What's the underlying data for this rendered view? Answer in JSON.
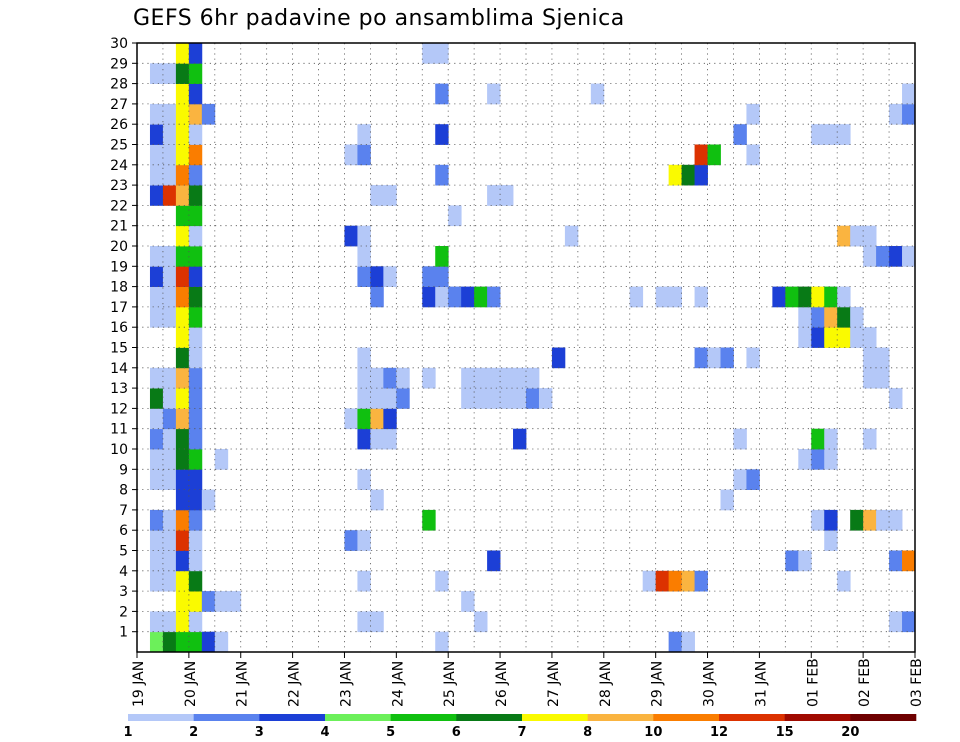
{
  "chart_data": {
    "type": "heatmap",
    "title": "GEFS 6hr padavine po ansamblima Sjenica",
    "x_tick_labels": [
      "19 JAN",
      "20 JAN",
      "21 JAN",
      "22 JAN",
      "23 JAN",
      "24 JAN",
      "25 JAN",
      "26 JAN",
      "27 JAN",
      "28 JAN",
      "29 JAN",
      "30 JAN",
      "31 JAN",
      "01 FEB",
      "02 FEB",
      "03 FEB"
    ],
    "y_tick_labels": [
      "1",
      "2",
      "3",
      "4",
      "5",
      "6",
      "7",
      "8",
      "9",
      "10",
      "11",
      "12",
      "13",
      "14",
      "15",
      "16",
      "17",
      "18",
      "19",
      "20",
      "21",
      "22",
      "23",
      "24",
      "25",
      "26",
      "27",
      "28",
      "29",
      "30"
    ],
    "y_range": [
      0,
      30
    ],
    "x_range_steps": [
      0,
      60
    ],
    "grid": true,
    "color_scale": {
      "thresholds": [
        "1",
        "2",
        "3",
        "4",
        "5",
        "6",
        "7",
        "8",
        "10",
        "12",
        "15",
        "20"
      ],
      "colors": [
        "#b4c8f8",
        "#5a82ee",
        "#1c3fd6",
        "#6cf05a",
        "#10c010",
        "#087a16",
        "#fafa00",
        "#fab440",
        "#fa7d00",
        "#dc3200",
        "#a00a00",
        "#6e0000"
      ]
    },
    "cells": [
      [
        1,
        2,
        4
      ],
      [
        1,
        3,
        6
      ],
      [
        1,
        4,
        5
      ],
      [
        1,
        5,
        5
      ],
      [
        1,
        6,
        3
      ],
      [
        1,
        7,
        1
      ],
      [
        1,
        24,
        1
      ],
      [
        1,
        42,
        2
      ],
      [
        1,
        43,
        1
      ],
      [
        2,
        2,
        1
      ],
      [
        2,
        3,
        1
      ],
      [
        2,
        4,
        7
      ],
      [
        2,
        5,
        1
      ],
      [
        2,
        18,
        1
      ],
      [
        2,
        19,
        1
      ],
      [
        2,
        27,
        1
      ],
      [
        2,
        59,
        1
      ],
      [
        2,
        60,
        2
      ],
      [
        3,
        4,
        7
      ],
      [
        3,
        5,
        7
      ],
      [
        3,
        6,
        2
      ],
      [
        3,
        7,
        1
      ],
      [
        3,
        8,
        1
      ],
      [
        3,
        26,
        1
      ],
      [
        4,
        2,
        1
      ],
      [
        4,
        3,
        1
      ],
      [
        4,
        4,
        7
      ],
      [
        4,
        5,
        6
      ],
      [
        4,
        18,
        1
      ],
      [
        4,
        24,
        1
      ],
      [
        4,
        40,
        1
      ],
      [
        4,
        41,
        10
      ],
      [
        4,
        42,
        9
      ],
      [
        4,
        43,
        8
      ],
      [
        4,
        44,
        2
      ],
      [
        4,
        55,
        1
      ],
      [
        5,
        2,
        1
      ],
      [
        5,
        3,
        1
      ],
      [
        5,
        4,
        3
      ],
      [
        5,
        5,
        1
      ],
      [
        5,
        28,
        3
      ],
      [
        5,
        51,
        2
      ],
      [
        5,
        52,
        1
      ],
      [
        5,
        59,
        2
      ],
      [
        5,
        60,
        9
      ],
      [
        6,
        2,
        1
      ],
      [
        6,
        3,
        1
      ],
      [
        6,
        4,
        10
      ],
      [
        6,
        5,
        1
      ],
      [
        6,
        17,
        2
      ],
      [
        6,
        18,
        1
      ],
      [
        6,
        54,
        1
      ],
      [
        7,
        2,
        2
      ],
      [
        7,
        3,
        1
      ],
      [
        7,
        4,
        9
      ],
      [
        7,
        5,
        2
      ],
      [
        7,
        23,
        5
      ],
      [
        7,
        53,
        1
      ],
      [
        7,
        54,
        3
      ],
      [
        7,
        56,
        6
      ],
      [
        7,
        57,
        8
      ],
      [
        7,
        58,
        1
      ],
      [
        7,
        59,
        1
      ],
      [
        8,
        4,
        3
      ],
      [
        8,
        5,
        3
      ],
      [
        8,
        6,
        1
      ],
      [
        8,
        19,
        1
      ],
      [
        8,
        46,
        1
      ],
      [
        9,
        2,
        1
      ],
      [
        9,
        3,
        1
      ],
      [
        9,
        4,
        3
      ],
      [
        9,
        5,
        3
      ],
      [
        9,
        18,
        1
      ],
      [
        9,
        47,
        1
      ],
      [
        9,
        48,
        2
      ],
      [
        10,
        2,
        1
      ],
      [
        10,
        3,
        1
      ],
      [
        10,
        4,
        6
      ],
      [
        10,
        5,
        5
      ],
      [
        10,
        7,
        1
      ],
      [
        10,
        52,
        1
      ],
      [
        10,
        53,
        2
      ],
      [
        10,
        54,
        1
      ],
      [
        11,
        2,
        2
      ],
      [
        11,
        3,
        1
      ],
      [
        11,
        4,
        6
      ],
      [
        11,
        5,
        2
      ],
      [
        11,
        18,
        3
      ],
      [
        11,
        19,
        1
      ],
      [
        11,
        20,
        1
      ],
      [
        11,
        30,
        3
      ],
      [
        11,
        47,
        1
      ],
      [
        11,
        53,
        5
      ],
      [
        11,
        54,
        1
      ],
      [
        11,
        57,
        1
      ],
      [
        12,
        2,
        1
      ],
      [
        12,
        3,
        2
      ],
      [
        12,
        4,
        8
      ],
      [
        12,
        5,
        2
      ],
      [
        12,
        17,
        1
      ],
      [
        12,
        18,
        5
      ],
      [
        12,
        19,
        8
      ],
      [
        12,
        20,
        3
      ],
      [
        13,
        2,
        6
      ],
      [
        13,
        3,
        1
      ],
      [
        13,
        4,
        7
      ],
      [
        13,
        5,
        2
      ],
      [
        13,
        18,
        1
      ],
      [
        13,
        19,
        1
      ],
      [
        13,
        20,
        1
      ],
      [
        13,
        21,
        2
      ],
      [
        13,
        26,
        1
      ],
      [
        13,
        27,
        1
      ],
      [
        13,
        28,
        1
      ],
      [
        13,
        29,
        1
      ],
      [
        13,
        30,
        1
      ],
      [
        13,
        31,
        2
      ],
      [
        13,
        32,
        1
      ],
      [
        13,
        59,
        1
      ],
      [
        14,
        2,
        1
      ],
      [
        14,
        3,
        1
      ],
      [
        14,
        4,
        8
      ],
      [
        14,
        5,
        2
      ],
      [
        14,
        18,
        1
      ],
      [
        14,
        19,
        1
      ],
      [
        14,
        20,
        2
      ],
      [
        14,
        21,
        1
      ],
      [
        14,
        23,
        1
      ],
      [
        14,
        26,
        1
      ],
      [
        14,
        27,
        1
      ],
      [
        14,
        28,
        1
      ],
      [
        14,
        29,
        1
      ],
      [
        14,
        30,
        1
      ],
      [
        14,
        31,
        1
      ],
      [
        14,
        57,
        1
      ],
      [
        14,
        58,
        1
      ],
      [
        15,
        4,
        6
      ],
      [
        15,
        5,
        1
      ],
      [
        15,
        18,
        1
      ],
      [
        15,
        33,
        3
      ],
      [
        15,
        44,
        2
      ],
      [
        15,
        45,
        1
      ],
      [
        15,
        46,
        2
      ],
      [
        15,
        48,
        1
      ],
      [
        15,
        57,
        1
      ],
      [
        15,
        58,
        1
      ],
      [
        16,
        4,
        7
      ],
      [
        16,
        5,
        1
      ],
      [
        16,
        52,
        1
      ],
      [
        16,
        53,
        3
      ],
      [
        16,
        54,
        7
      ],
      [
        16,
        55,
        7
      ],
      [
        16,
        56,
        1
      ],
      [
        16,
        57,
        1
      ],
      [
        17,
        2,
        1
      ],
      [
        17,
        3,
        1
      ],
      [
        17,
        4,
        7
      ],
      [
        17,
        5,
        5
      ],
      [
        17,
        52,
        1
      ],
      [
        17,
        53,
        2
      ],
      [
        17,
        54,
        8
      ],
      [
        17,
        55,
        6
      ],
      [
        17,
        56,
        1
      ],
      [
        18,
        2,
        1
      ],
      [
        18,
        3,
        1
      ],
      [
        18,
        4,
        9
      ],
      [
        18,
        5,
        6
      ],
      [
        18,
        19,
        2
      ],
      [
        18,
        23,
        3
      ],
      [
        18,
        24,
        1
      ],
      [
        18,
        25,
        2
      ],
      [
        18,
        26,
        3
      ],
      [
        18,
        27,
        5
      ],
      [
        18,
        28,
        2
      ],
      [
        18,
        39,
        1
      ],
      [
        18,
        41,
        1
      ],
      [
        18,
        42,
        1
      ],
      [
        18,
        44,
        1
      ],
      [
        18,
        50,
        3
      ],
      [
        18,
        51,
        5
      ],
      [
        18,
        52,
        6
      ],
      [
        18,
        53,
        7
      ],
      [
        18,
        54,
        5
      ],
      [
        18,
        55,
        1
      ],
      [
        19,
        2,
        3
      ],
      [
        19,
        3,
        1
      ],
      [
        19,
        4,
        10
      ],
      [
        19,
        5,
        3
      ],
      [
        19,
        18,
        2
      ],
      [
        19,
        19,
        3
      ],
      [
        19,
        20,
        1
      ],
      [
        19,
        23,
        2
      ],
      [
        19,
        24,
        2
      ],
      [
        20,
        2,
        1
      ],
      [
        20,
        3,
        1
      ],
      [
        20,
        4,
        5
      ],
      [
        20,
        5,
        5
      ],
      [
        20,
        18,
        1
      ],
      [
        20,
        24,
        5
      ],
      [
        20,
        57,
        1
      ],
      [
        20,
        58,
        2
      ],
      [
        20,
        59,
        3
      ],
      [
        20,
        60,
        1
      ],
      [
        21,
        4,
        7
      ],
      [
        21,
        5,
        1
      ],
      [
        21,
        17,
        3
      ],
      [
        21,
        18,
        1
      ],
      [
        21,
        34,
        1
      ],
      [
        21,
        55,
        8
      ],
      [
        21,
        56,
        1
      ],
      [
        21,
        57,
        1
      ],
      [
        22,
        4,
        5
      ],
      [
        22,
        5,
        5
      ],
      [
        22,
        25,
        1
      ],
      [
        23,
        2,
        3
      ],
      [
        23,
        3,
        10
      ],
      [
        23,
        4,
        8
      ],
      [
        23,
        5,
        6
      ],
      [
        23,
        19,
        1
      ],
      [
        23,
        20,
        1
      ],
      [
        23,
        28,
        1
      ],
      [
        23,
        29,
        1
      ],
      [
        24,
        2,
        1
      ],
      [
        24,
        3,
        1
      ],
      [
        24,
        4,
        9
      ],
      [
        24,
        5,
        2
      ],
      [
        24,
        24,
        2
      ],
      [
        24,
        42,
        7
      ],
      [
        24,
        43,
        6
      ],
      [
        24,
        44,
        3
      ],
      [
        25,
        2,
        1
      ],
      [
        25,
        3,
        1
      ],
      [
        25,
        4,
        7
      ],
      [
        25,
        5,
        9
      ],
      [
        25,
        17,
        1
      ],
      [
        25,
        18,
        2
      ],
      [
        25,
        44,
        10
      ],
      [
        25,
        45,
        5
      ],
      [
        25,
        48,
        1
      ],
      [
        26,
        2,
        3
      ],
      [
        26,
        3,
        1
      ],
      [
        26,
        4,
        7
      ],
      [
        26,
        5,
        1
      ],
      [
        26,
        18,
        1
      ],
      [
        26,
        24,
        3
      ],
      [
        26,
        47,
        2
      ],
      [
        26,
        53,
        1
      ],
      [
        26,
        54,
        1
      ],
      [
        26,
        55,
        1
      ],
      [
        27,
        2,
        1
      ],
      [
        27,
        3,
        1
      ],
      [
        27,
        4,
        7
      ],
      [
        27,
        5,
        8
      ],
      [
        27,
        6,
        2
      ],
      [
        27,
        48,
        1
      ],
      [
        27,
        59,
        1
      ],
      [
        27,
        60,
        2
      ],
      [
        28,
        4,
        7
      ],
      [
        28,
        5,
        3
      ],
      [
        28,
        24,
        2
      ],
      [
        28,
        28,
        1
      ],
      [
        28,
        36,
        1
      ],
      [
        28,
        60,
        1
      ],
      [
        29,
        2,
        1
      ],
      [
        29,
        3,
        1
      ],
      [
        29,
        4,
        6
      ],
      [
        29,
        5,
        5
      ],
      [
        30,
        4,
        7
      ],
      [
        30,
        5,
        3
      ],
      [
        30,
        23,
        1
      ],
      [
        30,
        24,
        1
      ]
    ],
    "cells_format": "[member (y), 6h step index from 19 JAN 00Z (x), color class index 1-12]"
  }
}
